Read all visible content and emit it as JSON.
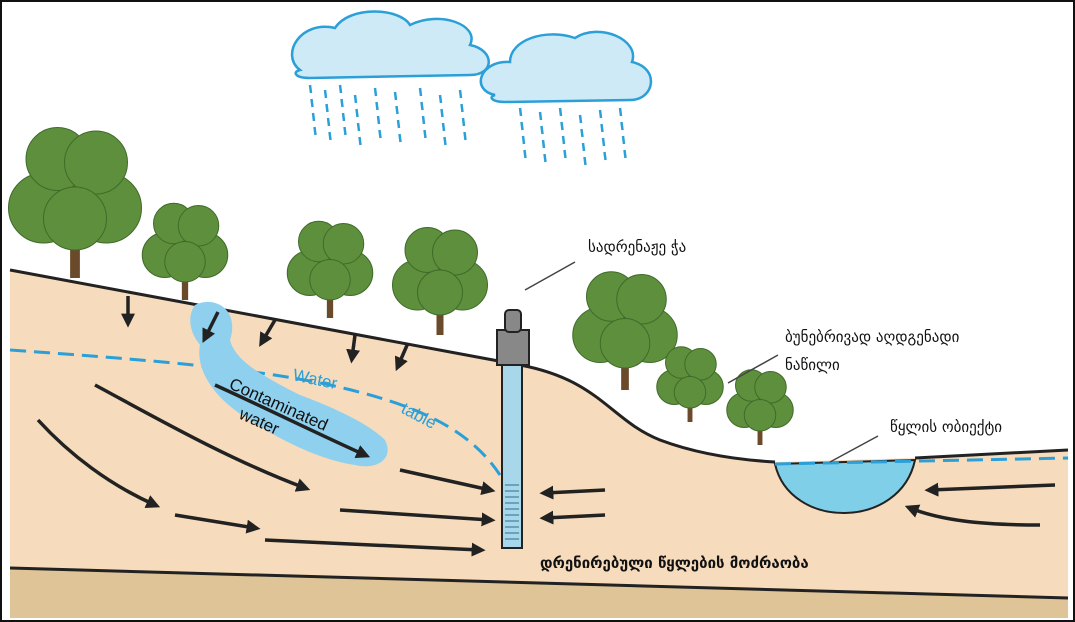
{
  "labels": {
    "well": "სადრენაჟე ჭა",
    "recharge_line1": "ბუნებრივად აღდგენადი",
    "recharge_line2": "ნაწილი",
    "water_body": "წყლის ობიექტი",
    "drainage_flow": "დრენირებული წყლების მოძრაობა",
    "water_table_1": "Water",
    "water_table_2": "table",
    "contaminated_1": "Contaminated",
    "contaminated_2": "water"
  }
}
